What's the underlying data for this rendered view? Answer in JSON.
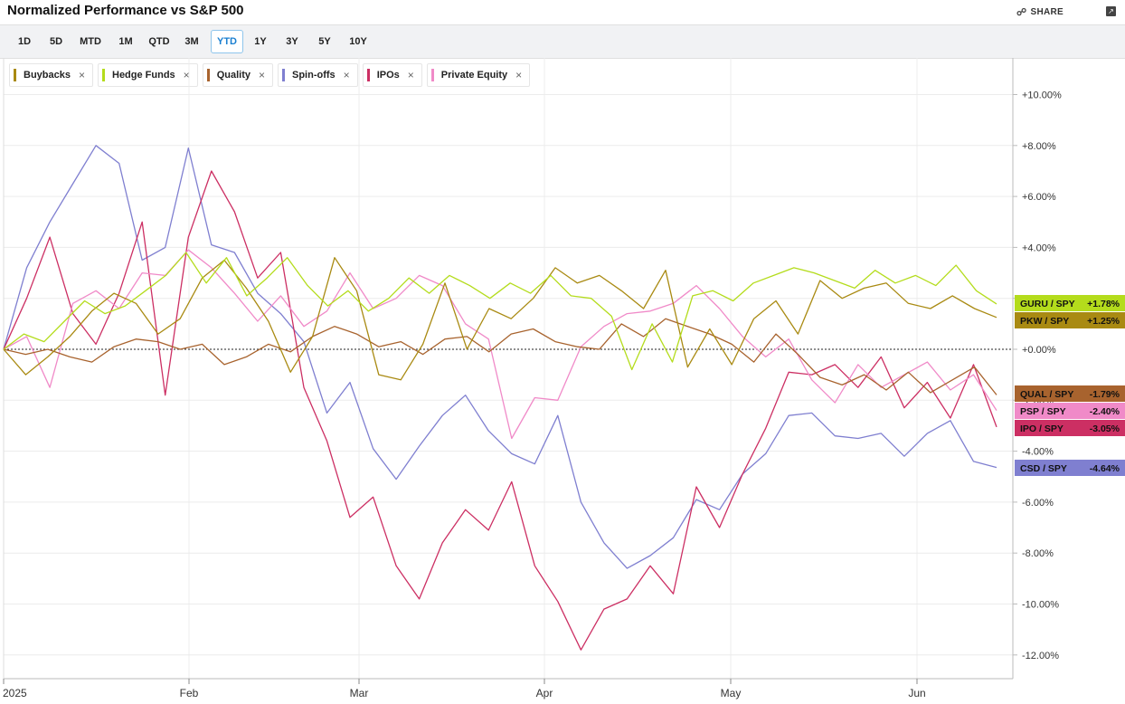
{
  "title": "Normalized Performance vs S&P 500",
  "share_label": "SHARE",
  "ranges": [
    {
      "label": "1D",
      "active": false
    },
    {
      "label": "5D",
      "active": false
    },
    {
      "label": "MTD",
      "active": false
    },
    {
      "label": "1M",
      "active": false
    },
    {
      "label": "QTD",
      "active": false
    },
    {
      "label": "3M",
      "active": false
    },
    {
      "label": "YTD",
      "active": true
    },
    {
      "label": "1Y",
      "active": false
    },
    {
      "label": "3Y",
      "active": false
    },
    {
      "label": "5Y",
      "active": false
    },
    {
      "label": "10Y",
      "active": false
    }
  ],
  "legend": [
    {
      "name": "Buybacks",
      "color": "#a98a12"
    },
    {
      "name": "Hedge Funds",
      "color": "#b4dc1c"
    },
    {
      "name": "Quality",
      "color": "#a8632e"
    },
    {
      "name": "Spin-offs",
      "color": "#7f7fd0"
    },
    {
      "name": "IPOs",
      "color": "#cc2f63"
    },
    {
      "name": "Private Equity",
      "color": "#f08ac8"
    }
  ],
  "chart_data": {
    "type": "line",
    "x_labels": [
      "2025",
      "Feb",
      "Mar",
      "Apr",
      "May",
      "Jun"
    ],
    "ylim": [
      -13,
      11
    ],
    "y_ticks": [
      "+10.00%",
      "+8.00%",
      "+6.00%",
      "+4.00%",
      "+2.00%",
      "+0.00%",
      "-2.00%",
      "-4.00%",
      "-6.00%",
      "-8.00%",
      "-10.00%",
      "-12.00%"
    ],
    "y_tick_values": [
      10,
      8,
      6,
      4,
      2,
      0,
      -2,
      -4,
      -6,
      -8,
      -10,
      -12
    ],
    "zero_line": true,
    "series": [
      {
        "name": "Buybacks",
        "color": "#a98a12",
        "tag": "PKW / SPY",
        "tag_value": "+1.25%",
        "tag_color": "#a98a12",
        "values": [
          0.0,
          -1.0,
          -0.3,
          0.5,
          1.5,
          2.2,
          1.8,
          0.6,
          1.2,
          2.8,
          3.5,
          2.4,
          1.1,
          -0.9,
          0.5,
          3.6,
          2.3,
          -1.0,
          -1.2,
          0.2,
          2.6,
          0.0,
          1.6,
          1.2,
          2.0,
          3.2,
          2.6,
          2.9,
          2.3,
          1.6,
          3.1,
          -0.7,
          0.8,
          -0.6,
          1.2,
          1.9,
          0.6,
          2.7,
          2.0,
          2.4,
          2.6,
          1.8,
          1.6,
          2.1,
          1.6,
          1.25
        ]
      },
      {
        "name": "Hedge Funds",
        "color": "#b4dc1c",
        "tag": "GURU / SPY",
        "tag_value": "+1.78%",
        "tag_color": "#b4dc1c",
        "values": [
          0.0,
          0.6,
          0.3,
          1.1,
          1.9,
          1.4,
          1.7,
          2.3,
          2.9,
          3.8,
          2.6,
          3.6,
          2.1,
          2.8,
          3.6,
          2.5,
          1.7,
          2.3,
          1.5,
          2.0,
          2.8,
          2.2,
          2.9,
          2.5,
          2.0,
          2.6,
          2.2,
          2.9,
          2.1,
          2.0,
          1.3,
          -0.8,
          1.0,
          -0.5,
          2.1,
          2.3,
          1.9,
          2.6,
          2.9,
          3.2,
          3.0,
          2.7,
          2.4,
          3.1,
          2.6,
          2.9,
          2.5,
          3.3,
          2.3,
          1.78
        ]
      },
      {
        "name": "Quality",
        "color": "#a8632e",
        "tag": "QUAL / SPY",
        "tag_value": "-1.79%",
        "tag_color": "#a8632e",
        "values": [
          0.0,
          -0.2,
          0.0,
          -0.3,
          -0.5,
          0.1,
          0.4,
          0.3,
          0.0,
          0.2,
          -0.6,
          -0.3,
          0.2,
          -0.1,
          0.5,
          0.9,
          0.6,
          0.1,
          0.3,
          -0.2,
          0.4,
          0.5,
          -0.1,
          0.6,
          0.8,
          0.3,
          0.1,
          0.0,
          1.0,
          0.5,
          1.2,
          0.9,
          0.6,
          0.2,
          -0.5,
          0.6,
          -0.2,
          -1.1,
          -1.4,
          -1.0,
          -1.6,
          -0.9,
          -1.7,
          -1.2,
          -0.7,
          -1.79
        ]
      },
      {
        "name": "Spin-offs",
        "color": "#7f7fd0",
        "tag": "CSD / SPY",
        "tag_value": "-4.64%",
        "tag_color": "#7f7fd0",
        "values": [
          0.0,
          3.2,
          5.0,
          6.5,
          8.0,
          7.3,
          3.5,
          4.0,
          7.9,
          4.1,
          3.8,
          2.2,
          1.4,
          0.3,
          -2.5,
          -1.3,
          -3.9,
          -5.1,
          -3.8,
          -2.6,
          -1.8,
          -3.2,
          -4.1,
          -4.5,
          -2.6,
          -6.0,
          -7.6,
          -8.6,
          -8.1,
          -7.4,
          -5.9,
          -6.3,
          -4.9,
          -4.1,
          -2.6,
          -2.5,
          -3.4,
          -3.5,
          -3.3,
          -4.2,
          -3.3,
          -2.8,
          -4.4,
          -4.64
        ]
      },
      {
        "name": "IPOs",
        "color": "#cc2f63",
        "tag": "IPO / SPY",
        "tag_value": "-3.05%",
        "tag_color": "#cc2f63",
        "values": [
          0.0,
          2.0,
          4.4,
          1.4,
          0.2,
          2.2,
          5.0,
          -1.8,
          4.4,
          7.0,
          5.4,
          2.8,
          3.8,
          -1.5,
          -3.6,
          -6.6,
          -5.8,
          -8.5,
          -9.8,
          -7.6,
          -6.3,
          -7.1,
          -5.2,
          -8.5,
          -9.9,
          -11.8,
          -10.2,
          -9.8,
          -8.5,
          -9.6,
          -5.4,
          -7.0,
          -4.9,
          -3.1,
          -0.9,
          -1.0,
          -0.6,
          -1.5,
          -0.3,
          -2.3,
          -1.3,
          -2.7,
          -0.6,
          -3.05
        ]
      },
      {
        "name": "Private Equity",
        "color": "#f08ac8",
        "tag": "PSP / SPY",
        "tag_value": "-2.40%",
        "tag_color": "#f08ac8",
        "values": [
          0.0,
          0.5,
          -1.5,
          1.8,
          2.3,
          1.6,
          3.0,
          2.9,
          3.9,
          3.2,
          2.2,
          1.1,
          2.1,
          0.9,
          1.5,
          3.0,
          1.6,
          2.0,
          2.9,
          2.5,
          1.0,
          0.4,
          -3.5,
          -1.9,
          -2.0,
          0.1,
          0.9,
          1.4,
          1.5,
          1.8,
          2.5,
          1.6,
          0.5,
          -0.3,
          0.4,
          -1.2,
          -2.1,
          -0.6,
          -1.5,
          -1.0,
          -0.5,
          -1.6,
          -1.0,
          -2.4
        ]
      }
    ]
  }
}
